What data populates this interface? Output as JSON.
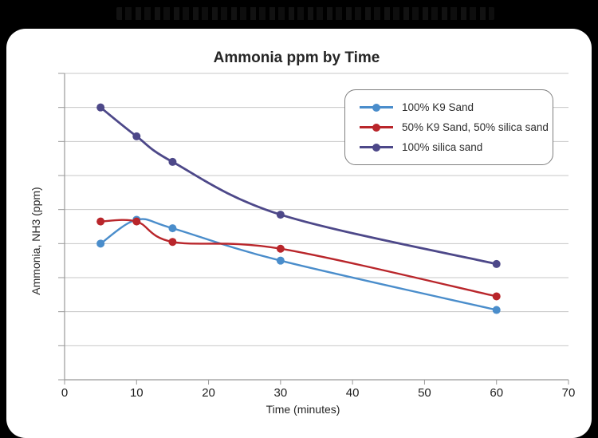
{
  "page": {
    "background_color": "#000000",
    "card_background_color": "#ffffff"
  },
  "top_banner": {
    "caption_visible": true,
    "caption_legible": false
  },
  "colors": {
    "gridline": "#c7c7c7",
    "axis_line": "#999999",
    "title_text": "#262626",
    "tick_text": "#1f1f1f",
    "legend_border": "#7f7f7f"
  },
  "chart_data": {
    "type": "line",
    "title": "Ammonia ppm by Time",
    "xlabel": "Time (minutes)",
    "ylabel": "Ammonia, NH3 (ppm)",
    "xlim": [
      0,
      70
    ],
    "x_ticks": [
      "0",
      "10",
      "20",
      "30",
      "40",
      "50",
      "60",
      "70"
    ],
    "ylim": [
      0,
      9
    ],
    "y_gridline_step": 1,
    "y_axis_numeric_labels": false,
    "grid": "horizontal",
    "line_style": "smooth",
    "marker": "circle",
    "legend_position": "top-right-inside",
    "x": [
      5,
      10,
      15,
      30,
      60
    ],
    "series": [
      {
        "name": "100% K9 Sand",
        "color": "#4A8DCB",
        "line_width": 2.4,
        "values": [
          4.0,
          4.7,
          4.45,
          3.5,
          2.05
        ]
      },
      {
        "name": "50% K9 Sand, 50% silica sand",
        "color": "#B9262B",
        "line_width": 2.4,
        "values": [
          4.65,
          4.65,
          4.05,
          3.85,
          2.45
        ]
      },
      {
        "name": "100% silica sand",
        "color": "#4D4889",
        "line_width": 2.8,
        "values": [
          8.0,
          7.15,
          6.4,
          4.85,
          3.4
        ]
      }
    ]
  }
}
